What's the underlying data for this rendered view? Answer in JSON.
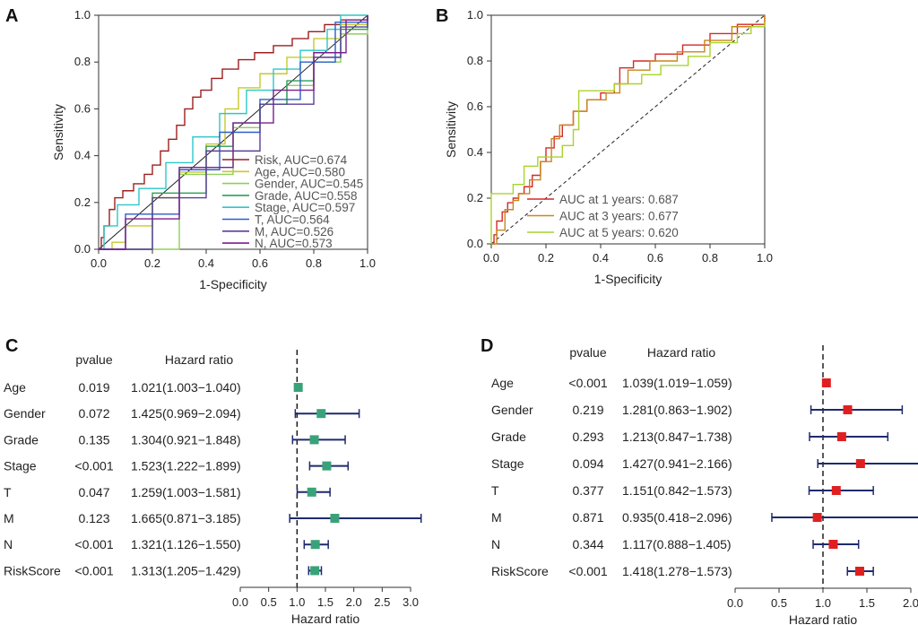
{
  "chart_data": [
    {
      "panel": "A",
      "type": "line",
      "xlabel": "1-Specificity",
      "ylabel": "Sensitivity",
      "xlim": [
        0,
        1
      ],
      "ylim": [
        0,
        1
      ],
      "xticks": [
        "0.0",
        "0.2",
        "0.4",
        "0.6",
        "0.8",
        "1.0"
      ],
      "yticks": [
        "0.0",
        "0.2",
        "0.4",
        "0.6",
        "0.8",
        "1.0"
      ],
      "legend_position": "bottom-right",
      "diagonal": true,
      "series": [
        {
          "name": "Risk, AUC=0.674",
          "color": "#9c1f1f",
          "points": [
            [
              0,
              0
            ],
            [
              0.01,
              0.05
            ],
            [
              0.02,
              0.1
            ],
            [
              0.04,
              0.17
            ],
            [
              0.06,
              0.22
            ],
            [
              0.09,
              0.25
            ],
            [
              0.13,
              0.28
            ],
            [
              0.17,
              0.32
            ],
            [
              0.2,
              0.36
            ],
            [
              0.23,
              0.42
            ],
            [
              0.26,
              0.47
            ],
            [
              0.29,
              0.53
            ],
            [
              0.32,
              0.6
            ],
            [
              0.35,
              0.65
            ],
            [
              0.38,
              0.68
            ],
            [
              0.42,
              0.73
            ],
            [
              0.46,
              0.77
            ],
            [
              0.52,
              0.81
            ],
            [
              0.58,
              0.84
            ],
            [
              0.65,
              0.87
            ],
            [
              0.72,
              0.9
            ],
            [
              0.78,
              0.93
            ],
            [
              0.84,
              0.96
            ],
            [
              0.9,
              0.98
            ],
            [
              1,
              1
            ]
          ]
        },
        {
          "name": "Age, AUC=0.580",
          "color": "#c7c92b",
          "points": [
            [
              0,
              0
            ],
            [
              0.05,
              0.03
            ],
            [
              0.1,
              0.1
            ],
            [
              0.2,
              0.22
            ],
            [
              0.3,
              0.33
            ],
            [
              0.4,
              0.45
            ],
            [
              0.47,
              0.6
            ],
            [
              0.52,
              0.69
            ],
            [
              0.6,
              0.75
            ],
            [
              0.7,
              0.82
            ],
            [
              0.8,
              0.9
            ],
            [
              0.9,
              0.96
            ],
            [
              1,
              1
            ]
          ]
        },
        {
          "name": "Gender, AUC=0.545",
          "color": "#8fcf5a",
          "points": [
            [
              0,
              0
            ],
            [
              0.3,
              0.32
            ],
            [
              0.5,
              0.52
            ],
            [
              0.6,
              0.62
            ],
            [
              0.7,
              0.7
            ],
            [
              0.8,
              0.8
            ],
            [
              0.9,
              0.92
            ],
            [
              1,
              1
            ]
          ]
        },
        {
          "name": "Grade, AUC=0.558",
          "color": "#2e9e5b",
          "points": [
            [
              0,
              0
            ],
            [
              0.2,
              0.24
            ],
            [
              0.4,
              0.44
            ],
            [
              0.5,
              0.54
            ],
            [
              0.6,
              0.62
            ],
            [
              0.7,
              0.72
            ],
            [
              0.8,
              0.82
            ],
            [
              0.9,
              0.94
            ],
            [
              1,
              1
            ]
          ]
        },
        {
          "name": "Stage, AUC=0.597",
          "color": "#2bc7c9",
          "points": [
            [
              0,
              0
            ],
            [
              0.02,
              0.1
            ],
            [
              0.07,
              0.19
            ],
            [
              0.15,
              0.26
            ],
            [
              0.25,
              0.37
            ],
            [
              0.35,
              0.48
            ],
            [
              0.45,
              0.58
            ],
            [
              0.55,
              0.68
            ],
            [
              0.65,
              0.77
            ],
            [
              0.75,
              0.85
            ],
            [
              0.85,
              0.94
            ],
            [
              0.9,
              1
            ],
            [
              1,
              1
            ]
          ]
        },
        {
          "name": "T, AUC=0.564",
          "color": "#2b5fc9",
          "points": [
            [
              0,
              0
            ],
            [
              0.1,
              0.15
            ],
            [
              0.3,
              0.34
            ],
            [
              0.45,
              0.5
            ],
            [
              0.6,
              0.64
            ],
            [
              0.75,
              0.8
            ],
            [
              0.88,
              0.97
            ],
            [
              1,
              1
            ]
          ]
        },
        {
          "name": "M, AUC=0.526",
          "color": "#5a3f99",
          "points": [
            [
              0,
              0
            ],
            [
              0.2,
              0.22
            ],
            [
              0.4,
              0.42
            ],
            [
              0.6,
              0.62
            ],
            [
              0.8,
              0.82
            ],
            [
              0.9,
              0.95
            ],
            [
              1,
              1
            ]
          ]
        },
        {
          "name": "N, AUC=0.573",
          "color": "#7a1f8f",
          "points": [
            [
              0,
              0
            ],
            [
              0.1,
              0.13
            ],
            [
              0.3,
              0.35
            ],
            [
              0.5,
              0.54
            ],
            [
              0.65,
              0.68
            ],
            [
              0.8,
              0.84
            ],
            [
              0.92,
              0.98
            ],
            [
              1,
              1
            ]
          ]
        }
      ]
    },
    {
      "panel": "B",
      "type": "line",
      "xlabel": "1-Specificity",
      "ylabel": "Sensitivity",
      "xlim": [
        0,
        1
      ],
      "ylim": [
        0,
        1
      ],
      "xticks": [
        "0.0",
        "0.2",
        "0.4",
        "0.6",
        "0.8",
        "1.0"
      ],
      "yticks": [
        "0.0",
        "0.2",
        "0.4",
        "0.6",
        "0.8",
        "1.0"
      ],
      "legend_position": "bottom-right",
      "diagonal": true,
      "series": [
        {
          "name": "AUC at 1 years: 0.687",
          "color": "#d42a2a",
          "points": [
            [
              0,
              0
            ],
            [
              0.01,
              0.04
            ],
            [
              0.02,
              0.1
            ],
            [
              0.04,
              0.14
            ],
            [
              0.06,
              0.18
            ],
            [
              0.08,
              0.2
            ],
            [
              0.1,
              0.22
            ],
            [
              0.12,
              0.25
            ],
            [
              0.15,
              0.3
            ],
            [
              0.18,
              0.36
            ],
            [
              0.2,
              0.42
            ],
            [
              0.23,
              0.47
            ],
            [
              0.26,
              0.52
            ],
            [
              0.3,
              0.58
            ],
            [
              0.35,
              0.63
            ],
            [
              0.4,
              0.66
            ],
            [
              0.45,
              0.7
            ],
            [
              0.47,
              0.77
            ],
            [
              0.52,
              0.8
            ],
            [
              0.6,
              0.83
            ],
            [
              0.7,
              0.87
            ],
            [
              0.8,
              0.92
            ],
            [
              0.9,
              0.96
            ],
            [
              1,
              1
            ]
          ]
        },
        {
          "name": "AUC at 3 years: 0.677",
          "color": "#c8861e",
          "points": [
            [
              0,
              0
            ],
            [
              0.02,
              0.06
            ],
            [
              0.05,
              0.15
            ],
            [
              0.08,
              0.19
            ],
            [
              0.1,
              0.22
            ],
            [
              0.14,
              0.28
            ],
            [
              0.18,
              0.36
            ],
            [
              0.22,
              0.46
            ],
            [
              0.25,
              0.52
            ],
            [
              0.3,
              0.58
            ],
            [
              0.35,
              0.63
            ],
            [
              0.42,
              0.66
            ],
            [
              0.47,
              0.7
            ],
            [
              0.5,
              0.76
            ],
            [
              0.58,
              0.8
            ],
            [
              0.68,
              0.84
            ],
            [
              0.78,
              0.89
            ],
            [
              0.88,
              0.95
            ],
            [
              1,
              1
            ]
          ]
        },
        {
          "name": "AUC at 5 years: 0.620",
          "color": "#a8d42a",
          "points": [
            [
              0,
              0
            ],
            [
              0,
              0.22
            ],
            [
              0.05,
              0.22
            ],
            [
              0.08,
              0.26
            ],
            [
              0.12,
              0.34
            ],
            [
              0.17,
              0.38
            ],
            [
              0.22,
              0.38
            ],
            [
              0.26,
              0.43
            ],
            [
              0.3,
              0.5
            ],
            [
              0.32,
              0.67
            ],
            [
              0.4,
              0.67
            ],
            [
              0.45,
              0.7
            ],
            [
              0.55,
              0.74
            ],
            [
              0.62,
              0.78
            ],
            [
              0.72,
              0.82
            ],
            [
              0.8,
              0.88
            ],
            [
              0.9,
              0.92
            ],
            [
              0.95,
              0.95
            ],
            [
              1,
              0.97
            ]
          ]
        }
      ]
    },
    {
      "panel": "C",
      "type": "forest",
      "xlabel": "Hazard ratio",
      "col_pvalue": "pvalue",
      "col_hr": "Hazard ratio",
      "xlim": [
        0,
        3.0
      ],
      "xticks": [
        "0.0",
        "0.5",
        "1.0",
        "1.5",
        "2.0",
        "2.5",
        "3.0"
      ],
      "reference": 1.0,
      "marker_color": "#3aa27a",
      "rows": [
        {
          "label": "Age",
          "pvalue": "0.019",
          "hr_text": "1.021(1.003−1.040)",
          "hr": 1.021,
          "lo": 1.003,
          "hi": 1.04
        },
        {
          "label": "Gender",
          "pvalue": "0.072",
          "hr_text": "1.425(0.969−2.094)",
          "hr": 1.425,
          "lo": 0.969,
          "hi": 2.094
        },
        {
          "label": "Grade",
          "pvalue": "0.135",
          "hr_text": "1.304(0.921−1.848)",
          "hr": 1.304,
          "lo": 0.921,
          "hi": 1.848
        },
        {
          "label": "Stage",
          "pvalue": "<0.001",
          "hr_text": "1.523(1.222−1.899)",
          "hr": 1.523,
          "lo": 1.222,
          "hi": 1.899
        },
        {
          "label": "T",
          "pvalue": "0.047",
          "hr_text": "1.259(1.003−1.581)",
          "hr": 1.259,
          "lo": 1.003,
          "hi": 1.581
        },
        {
          "label": "M",
          "pvalue": "0.123",
          "hr_text": "1.665(0.871−3.185)",
          "hr": 1.665,
          "lo": 0.871,
          "hi": 3.185
        },
        {
          "label": "N",
          "pvalue": "<0.001",
          "hr_text": "1.321(1.126−1.550)",
          "hr": 1.321,
          "lo": 1.126,
          "hi": 1.55
        },
        {
          "label": "RiskScore",
          "pvalue": "<0.001",
          "hr_text": "1.313(1.205−1.429)",
          "hr": 1.313,
          "lo": 1.205,
          "hi": 1.429
        }
      ]
    },
    {
      "panel": "D",
      "type": "forest",
      "xlabel": "Hazard ratio",
      "col_pvalue": "pvalue",
      "col_hr": "Hazard ratio",
      "xlim": [
        0,
        2.0
      ],
      "xticks": [
        "0.0",
        "0.5",
        "1.0",
        "1.5",
        "2.0"
      ],
      "reference": 1.0,
      "marker_color": "#e02020",
      "rows": [
        {
          "label": "Age",
          "pvalue": "<0.001",
          "hr_text": "1.039(1.019−1.059)",
          "hr": 1.039,
          "lo": 1.019,
          "hi": 1.059
        },
        {
          "label": "Gender",
          "pvalue": "0.219",
          "hr_text": "1.281(0.863−1.902)",
          "hr": 1.281,
          "lo": 0.863,
          "hi": 1.902
        },
        {
          "label": "Grade",
          "pvalue": "0.293",
          "hr_text": "1.213(0.847−1.738)",
          "hr": 1.213,
          "lo": 0.847,
          "hi": 1.738
        },
        {
          "label": "Stage",
          "pvalue": "0.094",
          "hr_text": "1.427(0.941−2.166)",
          "hr": 1.427,
          "lo": 0.941,
          "hi": 2.166
        },
        {
          "label": "T",
          "pvalue": "0.377",
          "hr_text": "1.151(0.842−1.573)",
          "hr": 1.151,
          "lo": 0.842,
          "hi": 1.573
        },
        {
          "label": "M",
          "pvalue": "0.871",
          "hr_text": "0.935(0.418−2.096)",
          "hr": 0.935,
          "lo": 0.418,
          "hi": 2.096
        },
        {
          "label": "N",
          "pvalue": "0.344",
          "hr_text": "1.117(0.888−1.405)",
          "hr": 1.117,
          "lo": 0.888,
          "hi": 1.405
        },
        {
          "label": "RiskScore",
          "pvalue": "<0.001",
          "hr_text": "1.418(1.278−1.573)",
          "hr": 1.418,
          "lo": 1.278,
          "hi": 1.573
        }
      ]
    }
  ],
  "line_color": "#1f2a6e"
}
